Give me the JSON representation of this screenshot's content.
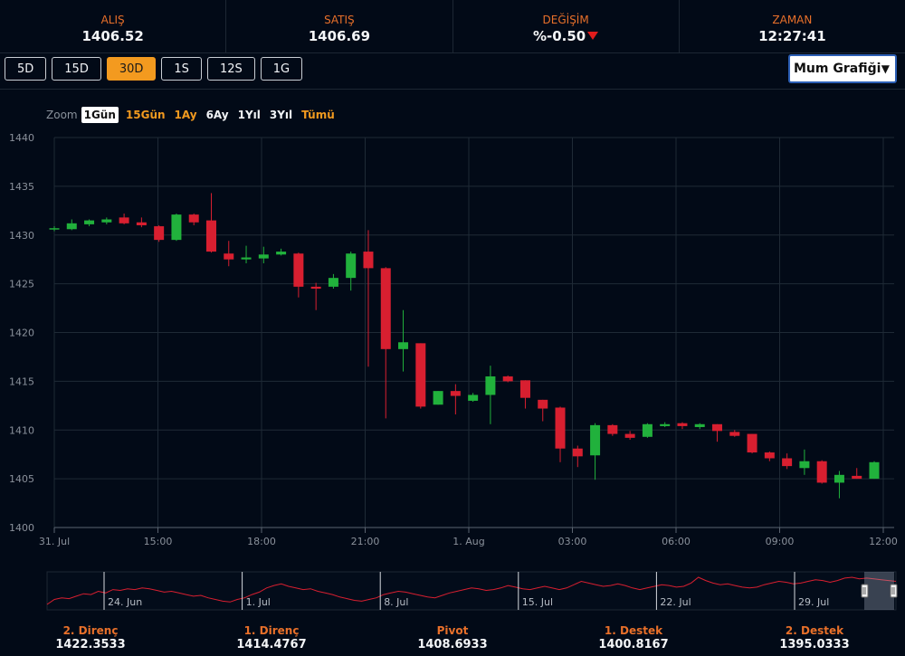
{
  "quotes": [
    {
      "label": "ALIŞ",
      "value": "1406.52"
    },
    {
      "label": "SATIŞ",
      "value": "1406.69"
    },
    {
      "label": "DEĞİŞİM",
      "value": "%-0.50"
    },
    {
      "label": "ZAMAN",
      "value": "12:27:41"
    }
  ],
  "colors": {
    "up": "#21b13c",
    "down": "#d81f30",
    "accent": "#f39a1f",
    "label": "#e8702a"
  },
  "periods": [
    {
      "label": "5D",
      "active": false
    },
    {
      "label": "15D",
      "active": false
    },
    {
      "label": "30D",
      "active": true
    },
    {
      "label": "1S",
      "active": false
    },
    {
      "label": "12S",
      "active": false
    },
    {
      "label": "1G",
      "active": false
    }
  ],
  "chart_type": {
    "selected": "Mum Grafiği"
  },
  "zoom": {
    "label": "Zoom",
    "options": [
      "1Gün",
      "15Gün",
      "1Ay",
      "6Ay",
      "1Yıl",
      "3Yıl",
      "Tümü"
    ],
    "selected": "1Gün"
  },
  "chart_data": {
    "type": "candlestick",
    "y_ticks": [
      1400,
      1405,
      1410,
      1415,
      1420,
      1425,
      1430,
      1435,
      1440
    ],
    "ylim": [
      1400,
      1440
    ],
    "x_ticks": [
      "31. Jul",
      "15:00",
      "18:00",
      "21:00",
      "1. Aug",
      "03:00",
      "06:00",
      "09:00",
      "12:00"
    ],
    "candles": [
      {
        "o": 1430.6,
        "h": 1430.9,
        "l": 1430.4,
        "c": 1430.7
      },
      {
        "o": 1430.6,
        "h": 1431.6,
        "l": 1430.5,
        "c": 1431.2
      },
      {
        "o": 1431.1,
        "h": 1431.6,
        "l": 1430.9,
        "c": 1431.5
      },
      {
        "o": 1431.3,
        "h": 1431.8,
        "l": 1431.1,
        "c": 1431.6
      },
      {
        "o": 1431.8,
        "h": 1432.2,
        "l": 1431.1,
        "c": 1431.2
      },
      {
        "o": 1431.3,
        "h": 1431.8,
        "l": 1430.8,
        "c": 1431.0
      },
      {
        "o": 1430.9,
        "h": 1431.0,
        "l": 1429.3,
        "c": 1429.5
      },
      {
        "o": 1429.5,
        "h": 1432.2,
        "l": 1429.4,
        "c": 1432.1
      },
      {
        "o": 1432.1,
        "h": 1432.2,
        "l": 1431.0,
        "c": 1431.3
      },
      {
        "o": 1431.5,
        "h": 1434.3,
        "l": 1428.2,
        "c": 1428.3
      },
      {
        "o": 1428.1,
        "h": 1429.4,
        "l": 1426.8,
        "c": 1427.5
      },
      {
        "o": 1427.5,
        "h": 1428.9,
        "l": 1427.1,
        "c": 1427.7
      },
      {
        "o": 1427.6,
        "h": 1428.8,
        "l": 1427.1,
        "c": 1428.0
      },
      {
        "o": 1428.0,
        "h": 1428.6,
        "l": 1427.9,
        "c": 1428.3
      },
      {
        "o": 1428.1,
        "h": 1428.2,
        "l": 1423.6,
        "c": 1424.7
      },
      {
        "o": 1424.7,
        "h": 1425.1,
        "l": 1422.3,
        "c": 1424.5
      },
      {
        "o": 1424.7,
        "h": 1426.0,
        "l": 1424.5,
        "c": 1425.6
      },
      {
        "o": 1425.6,
        "h": 1428.3,
        "l": 1424.3,
        "c": 1428.1
      },
      {
        "o": 1428.3,
        "h": 1430.5,
        "l": 1416.5,
        "c": 1426.6
      },
      {
        "o": 1426.6,
        "h": 1426.7,
        "l": 1411.2,
        "c": 1418.3
      },
      {
        "o": 1418.3,
        "h": 1422.3,
        "l": 1416.0,
        "c": 1419.0
      },
      {
        "o": 1418.9,
        "h": 1418.9,
        "l": 1412.2,
        "c": 1412.4
      },
      {
        "o": 1412.6,
        "h": 1414.0,
        "l": 1412.6,
        "c": 1414.0
      },
      {
        "o": 1414.0,
        "h": 1414.7,
        "l": 1411.6,
        "c": 1413.5
      },
      {
        "o": 1413.0,
        "h": 1413.8,
        "l": 1412.9,
        "c": 1413.6
      },
      {
        "o": 1413.6,
        "h": 1416.6,
        "l": 1410.6,
        "c": 1415.5
      },
      {
        "o": 1415.5,
        "h": 1415.6,
        "l": 1414.9,
        "c": 1415.0
      },
      {
        "o": 1415.1,
        "h": 1415.1,
        "l": 1412.2,
        "c": 1413.3
      },
      {
        "o": 1413.1,
        "h": 1413.1,
        "l": 1410.9,
        "c": 1412.2
      },
      {
        "o": 1412.3,
        "h": 1412.4,
        "l": 1406.7,
        "c": 1408.1
      },
      {
        "o": 1408.1,
        "h": 1408.4,
        "l": 1406.2,
        "c": 1407.3
      },
      {
        "o": 1407.4,
        "h": 1410.7,
        "l": 1404.9,
        "c": 1410.5
      },
      {
        "o": 1410.5,
        "h": 1410.6,
        "l": 1409.4,
        "c": 1409.6
      },
      {
        "o": 1409.6,
        "h": 1409.9,
        "l": 1409.0,
        "c": 1409.2
      },
      {
        "o": 1409.3,
        "h": 1410.7,
        "l": 1409.2,
        "c": 1410.6
      },
      {
        "o": 1410.4,
        "h": 1410.8,
        "l": 1410.3,
        "c": 1410.6
      },
      {
        "o": 1410.7,
        "h": 1410.8,
        "l": 1410.1,
        "c": 1410.4
      },
      {
        "o": 1410.3,
        "h": 1410.7,
        "l": 1410.1,
        "c": 1410.6
      },
      {
        "o": 1410.6,
        "h": 1410.6,
        "l": 1408.8,
        "c": 1409.9
      },
      {
        "o": 1409.8,
        "h": 1410.0,
        "l": 1409.3,
        "c": 1409.4
      },
      {
        "o": 1409.6,
        "h": 1409.6,
        "l": 1407.6,
        "c": 1407.7
      },
      {
        "o": 1407.7,
        "h": 1407.8,
        "l": 1406.8,
        "c": 1407.1
      },
      {
        "o": 1407.1,
        "h": 1407.6,
        "l": 1406.0,
        "c": 1406.3
      },
      {
        "o": 1406.1,
        "h": 1408.0,
        "l": 1405.4,
        "c": 1406.8
      },
      {
        "o": 1406.8,
        "h": 1406.9,
        "l": 1404.5,
        "c": 1404.6
      },
      {
        "o": 1404.6,
        "h": 1405.8,
        "l": 1403.0,
        "c": 1405.4
      },
      {
        "o": 1405.3,
        "h": 1406.1,
        "l": 1405.0,
        "c": 1405.0
      },
      {
        "o": 1405.0,
        "h": 1406.8,
        "l": 1405.0,
        "c": 1406.7
      }
    ]
  },
  "navigator": {
    "labels": [
      "24. Jun",
      "1. Jul",
      "8. Jul",
      "15. Jul",
      "22. Jul",
      "29. Jul"
    ],
    "values": [
      1372,
      1378,
      1380,
      1379,
      1382,
      1385,
      1384,
      1388,
      1386,
      1390,
      1389,
      1391,
      1390,
      1392,
      1391,
      1389,
      1387,
      1388,
      1386,
      1384,
      1382,
      1383,
      1380,
      1378,
      1376,
      1375,
      1378,
      1380,
      1384,
      1387,
      1392,
      1395,
      1397,
      1394,
      1392,
      1390,
      1391,
      1388,
      1386,
      1384,
      1381,
      1379,
      1377,
      1376,
      1378,
      1380,
      1384,
      1386,
      1388,
      1387,
      1385,
      1383,
      1381,
      1380,
      1383,
      1386,
      1388,
      1390,
      1392,
      1391,
      1389,
      1390,
      1392,
      1395,
      1393,
      1391,
      1390,
      1392,
      1394,
      1392,
      1390,
      1392,
      1396,
      1400,
      1398,
      1396,
      1394,
      1395,
      1397,
      1395,
      1392,
      1390,
      1392,
      1394,
      1396,
      1395,
      1393,
      1394,
      1398,
      1405,
      1401,
      1398,
      1396,
      1397,
      1395,
      1393,
      1392,
      1393,
      1396,
      1398,
      1400,
      1399,
      1397,
      1398,
      1400,
      1402,
      1401,
      1399,
      1401,
      1404,
      1405,
      1403,
      1404,
      1403,
      1402,
      1401,
      1400
    ]
  },
  "pivots": [
    {
      "label": "2. Direnç",
      "value": "1422.3533"
    },
    {
      "label": "1. Direnç",
      "value": "1414.4767"
    },
    {
      "label": "Pivot",
      "value": "1408.6933"
    },
    {
      "label": "1. Destek",
      "value": "1400.8167"
    },
    {
      "label": "2. Destek",
      "value": "1395.0333"
    }
  ]
}
